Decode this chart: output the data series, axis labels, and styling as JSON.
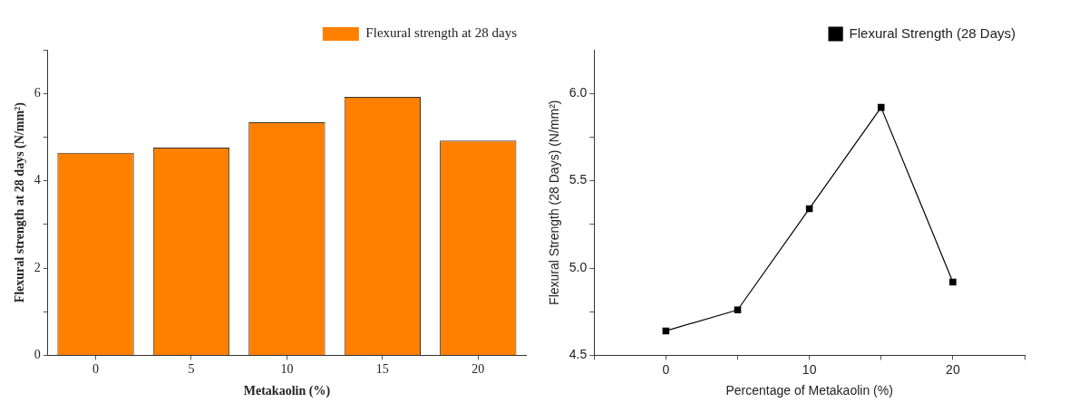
{
  "chart_data": [
    {
      "type": "bar",
      "xlabel": "Metakaolin (%)",
      "ylabel": "Flexural strength at 28 days (N/mm²)",
      "categories": [
        "0",
        "5",
        "10",
        "15",
        "20"
      ],
      "series": [
        {
          "name": "Flexural strength at 28 days",
          "color": "#ff8000",
          "values": [
            4.64,
            4.76,
            5.34,
            5.92,
            4.92
          ]
        }
      ],
      "ylim": [
        0,
        7
      ],
      "yticks": [
        0,
        {
          "value": 1,
          "label": null
        },
        2,
        {
          "value": 3,
          "label": null
        },
        4,
        {
          "value": 5,
          "label": null
        },
        6,
        {
          "value": 7,
          "label": null
        }
      ],
      "legend": "top right"
    },
    {
      "type": "line",
      "xlabel": "Percentage of Metakaolin (%)",
      "ylabel": "Flexural Strength (28 Days) (N/mm²)",
      "x": [
        0,
        5,
        10,
        15,
        20
      ],
      "series": [
        {
          "name": "Flexural Strength (28 Days)",
          "color": "#000000",
          "values": [
            4.64,
            4.76,
            5.34,
            5.92,
            4.92
          ]
        }
      ],
      "xlim": [
        -5,
        25
      ],
      "xticks": [
        {
          "value": -5,
          "label": null
        },
        0,
        {
          "value": 5,
          "label": null
        },
        10,
        {
          "value": 15,
          "label": null
        },
        20,
        {
          "value": 25,
          "label": null
        }
      ],
      "ylim": [
        4.5,
        6.25
      ],
      "yticks": [
        {
          "value": 4.5,
          "label": "4.5"
        },
        {
          "value": 4.75,
          "label": null
        },
        {
          "value": 5,
          "label": "5.0"
        },
        {
          "value": 5.25,
          "label": null
        },
        {
          "value": 5.5,
          "label": "5.5"
        },
        {
          "value": 5.75,
          "label": null
        },
        {
          "value": 6,
          "label": "6.0"
        }
      ],
      "legend": "top right",
      "marker": "square",
      "line_style": "solid"
    }
  ]
}
